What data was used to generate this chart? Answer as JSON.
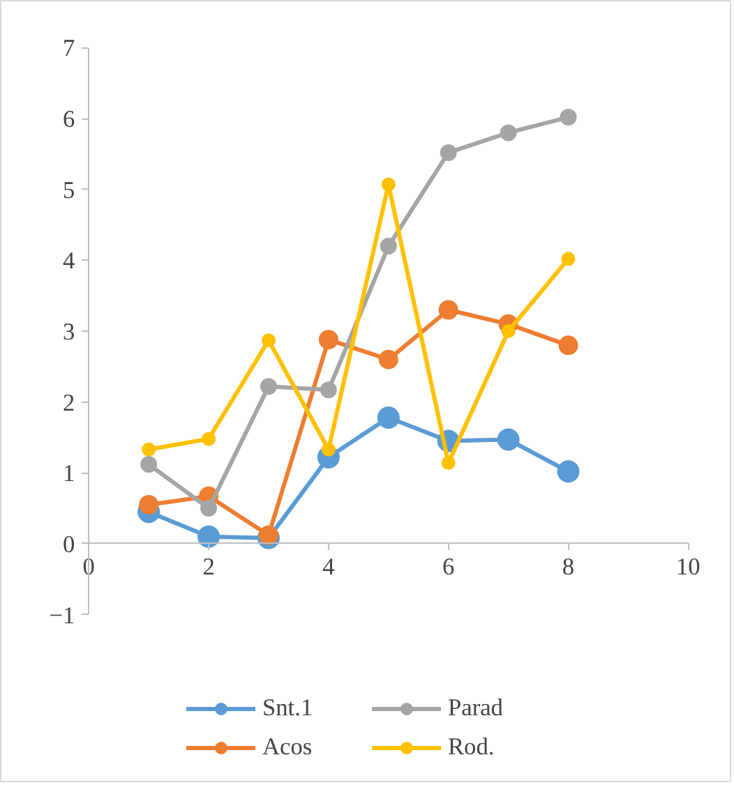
{
  "chart_data": {
    "type": "line",
    "x": [
      1,
      2,
      3,
      4,
      5,
      6,
      7,
      8
    ],
    "series": [
      {
        "name": "Snt.1",
        "color": "#5b9bd5",
        "values": [
          0.45,
          0.1,
          0.08,
          1.22,
          1.78,
          1.45,
          1.47,
          1.02
        ]
      },
      {
        "name": "Acos",
        "color": "#ed7d31",
        "values": [
          0.55,
          0.67,
          0.12,
          2.88,
          2.6,
          3.3,
          3.1,
          2.8
        ]
      },
      {
        "name": "Parad",
        "color": "#a5a5a5",
        "values": [
          1.12,
          0.5,
          2.22,
          2.17,
          4.2,
          5.52,
          5.8,
          6.02
        ]
      },
      {
        "name": "Rod.",
        "color": "#ffc000",
        "values": [
          1.33,
          1.48,
          2.87,
          1.33,
          5.07,
          1.14,
          3.0,
          4.02
        ]
      }
    ],
    "xlim": [
      0,
      10
    ],
    "xticks": [
      0,
      2,
      4,
      6,
      8,
      10
    ],
    "ylim": [
      -1,
      7
    ],
    "yticks": [
      -1,
      0,
      1,
      2,
      3,
      4,
      5,
      6,
      7
    ],
    "grid": false,
    "legend": "bottom",
    "marker": "circle",
    "line_style": "solid"
  }
}
